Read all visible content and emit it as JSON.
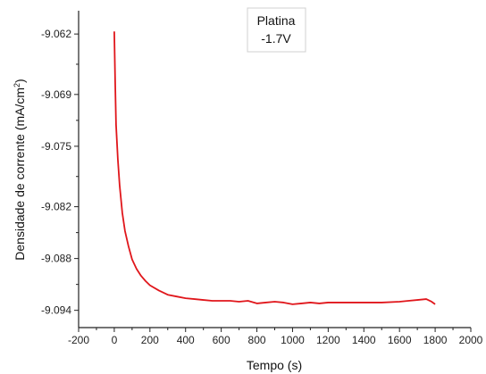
{
  "chart_data": {
    "type": "line",
    "xlabel": "Tempo (s)",
    "ylabel": "Densidade de corrente (mA/cm",
    "ylabel_sup": "2",
    "ylabel_close": ")",
    "annotation": {
      "line1": "Platina",
      "line2": "-1.7V"
    },
    "xlim": [
      -200,
      2000
    ],
    "ylim": [
      -9.096,
      -9.0593
    ],
    "x_ticks": [
      -200,
      0,
      200,
      400,
      600,
      800,
      1000,
      1200,
      1400,
      1600,
      1800,
      2000
    ],
    "y_ticks": [
      -9.062,
      -9.069,
      -9.075,
      -9.082,
      -9.088,
      -9.094
    ],
    "y_tick_labels": [
      "-9.062",
      "-9.069",
      "-9.075",
      "-9.082",
      "-9.088",
      "-9.094"
    ],
    "grid": false,
    "series": [
      {
        "color": "#e0161b",
        "x": [
          0,
          5,
          10,
          20,
          30,
          45,
          60,
          80,
          100,
          125,
          150,
          175,
          200,
          250,
          300,
          350,
          400,
          450,
          500,
          550,
          600,
          650,
          700,
          750,
          800,
          850,
          900,
          950,
          1000,
          1050,
          1100,
          1150,
          1200,
          1300,
          1400,
          1500,
          1600,
          1650,
          1700,
          1750,
          1780,
          1800
        ],
        "y": [
          -9.0617,
          -9.0675,
          -9.0725,
          -9.0765,
          -9.0795,
          -9.0827,
          -9.0848,
          -9.0866,
          -9.0881,
          -9.0892,
          -9.09,
          -9.0906,
          -9.0911,
          -9.0917,
          -9.0922,
          -9.0924,
          -9.0926,
          -9.0927,
          -9.0928,
          -9.0929,
          -9.0929,
          -9.0929,
          -9.093,
          -9.0929,
          -9.0932,
          -9.0931,
          -9.093,
          -9.0931,
          -9.0933,
          -9.0932,
          -9.0931,
          -9.0932,
          -9.0931,
          -9.0931,
          -9.0931,
          -9.0931,
          -9.093,
          -9.0929,
          -9.0928,
          -9.0927,
          -9.093,
          -9.0933
        ]
      }
    ]
  }
}
